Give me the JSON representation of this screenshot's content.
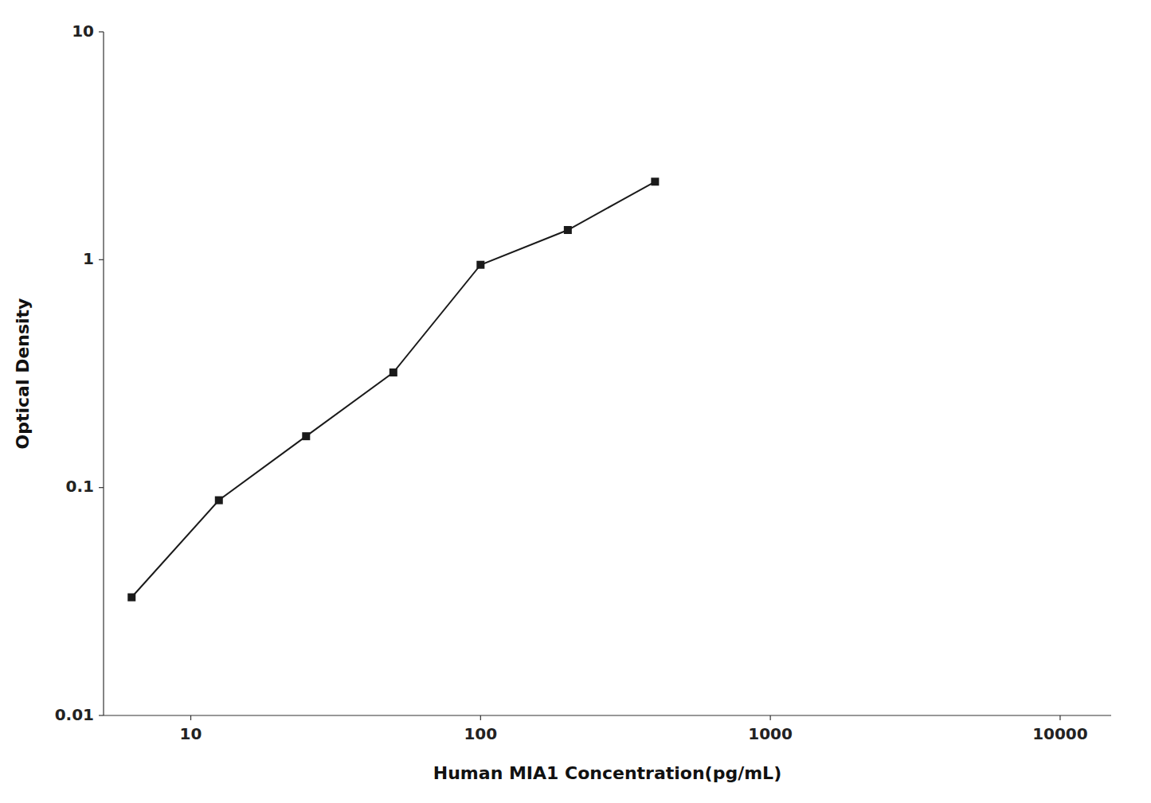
{
  "chart_data": {
    "type": "line",
    "x": [
      6.25,
      12.5,
      25,
      50,
      100,
      200,
      400
    ],
    "values": [
      0.033,
      0.088,
      0.168,
      0.32,
      0.95,
      1.35,
      2.2
    ],
    "xlabel": "Human MIA1 Concentration(pg/mL)",
    "ylabel": "Optical Density",
    "xlim": [
      5,
      15000
    ],
    "ylim": [
      0.01,
      10
    ],
    "xticks": [
      10,
      100,
      1000,
      10000
    ],
    "yticks": [
      0.01,
      0.1,
      1,
      10
    ],
    "log": true,
    "grid": false,
    "color": "#1a1a1a",
    "marker": "square"
  }
}
